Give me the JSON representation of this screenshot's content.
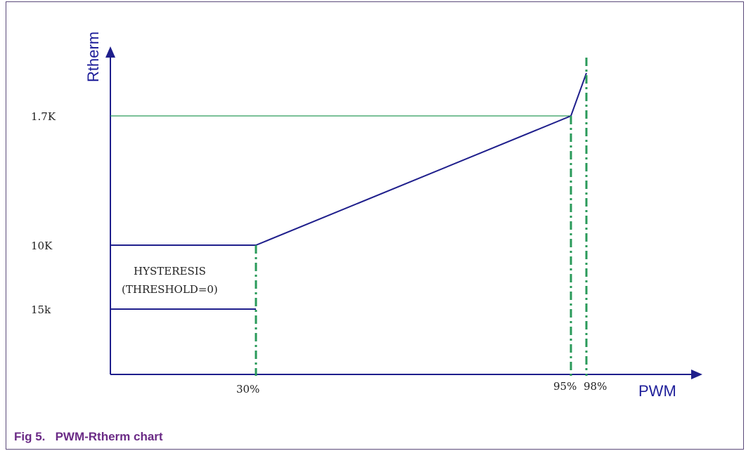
{
  "caption": {
    "figure_number": "Fig 5.",
    "title": "PWM-Rtherm chart"
  },
  "axes": {
    "y_title": "Rtherm",
    "x_title": "PWM",
    "y_ticks": [
      "1.7K",
      "10K",
      "15k"
    ],
    "x_ticks": [
      "30%",
      "95%",
      "98%"
    ]
  },
  "annotation": {
    "line1": "HYSTERESIS",
    "line2": "(THRESHOLD=0)"
  },
  "colors": {
    "axis": "#1f1f8c",
    "curve": "#1f1f8c",
    "marker_lines": "#2a9a5a",
    "caption": "#6b2b86"
  }
}
